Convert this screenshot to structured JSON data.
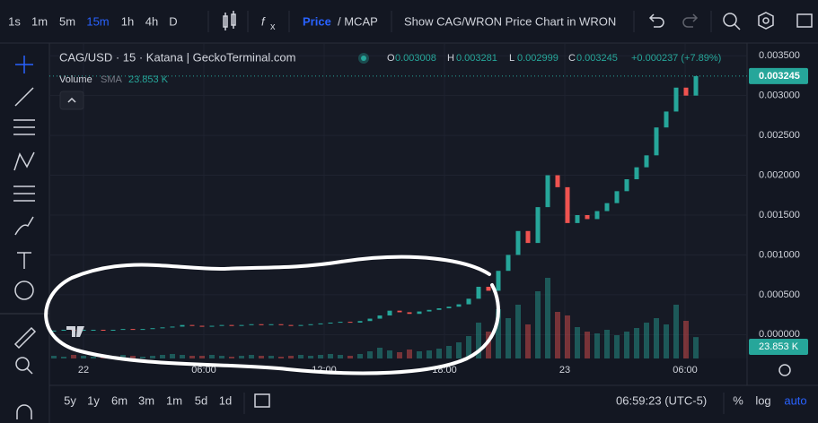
{
  "toolbar": {
    "intervals": [
      "1s",
      "1m",
      "5m",
      "15m",
      "1h",
      "4h",
      "D"
    ],
    "active_interval": "15m",
    "price": "Price",
    "mcap": "/ MCAP",
    "switch": "Show CAG/WRON Price Chart in WRON"
  },
  "legend": {
    "symbol": "CAG/USD · 15 · Katana | GeckoTerminal.com",
    "o_label": "O",
    "o": "0.003008",
    "h_label": "H",
    "h": "0.003281",
    "l_label": "L",
    "l": "0.002999",
    "c_label": "C",
    "c": "0.003245",
    "change": "+0.000237 (+7.89%)",
    "volume": "Volume",
    "sma": "SMA",
    "volume_value": "23.853 K"
  },
  "chart": {
    "type": "candlestick",
    "open": 4e-05,
    "close": [
      5e-05,
      6e-05,
      5e-05,
      6e-05,
      6e-05,
      5e-05,
      6e-05,
      7e-05,
      6e-05,
      7e-05,
      8e-05,
      9e-05,
      0.0001,
      0.00012,
      0.00011,
      0.0001,
      0.00011,
      0.00012,
      0.00011,
      0.00012,
      0.00013,
      0.00012,
      0.00013,
      0.00012,
      0.00011,
      0.00012,
      0.00013,
      0.00014,
      0.00015,
      0.00016,
      0.00015,
      0.00017,
      0.0002,
      0.00024,
      0.0003,
      0.00028,
      0.00026,
      0.00029,
      0.00031,
      0.00033,
      0.00035,
      0.00038,
      0.00045,
      0.0006,
      0.00055,
      0.0008,
      0.001,
      0.0013,
      0.00115,
      0.0016,
      0.002,
      0.00185,
      0.0014,
      0.0015,
      0.00145,
      0.00155,
      0.00165,
      0.0018,
      0.00195,
      0.0021,
      0.00225,
      0.0026,
      0.0028,
      0.0031,
      0.003,
      0.003245
    ],
    "volume": [
      3,
      2,
      4,
      3,
      2,
      3,
      2,
      4,
      3,
      2,
      3,
      4,
      5,
      4,
      3,
      3,
      4,
      3,
      2,
      3,
      4,
      3,
      3,
      2,
      3,
      4,
      3,
      4,
      5,
      4,
      3,
      5,
      8,
      12,
      9,
      7,
      10,
      8,
      9,
      11,
      14,
      18,
      25,
      40,
      30,
      55,
      45,
      60,
      38,
      75,
      90,
      52,
      48,
      35,
      30,
      28,
      32,
      26,
      30,
      34,
      40,
      45,
      38,
      60,
      42,
      23.853
    ],
    "up_color": "#26a69a",
    "down_color": "#ef5350",
    "grid": true,
    "ylim": [
      -0.0003,
      0.00366
    ],
    "yticks": [
      {
        "value": 0,
        "label": "0.000000"
      },
      {
        "value": 0.0005,
        "label": "0.000500"
      },
      {
        "value": 0.001,
        "label": "0.001000"
      },
      {
        "value": 0.0015,
        "label": "0.001500"
      },
      {
        "value": 0.002,
        "label": "0.002000"
      },
      {
        "value": 0.0025,
        "label": "0.002500"
      },
      {
        "value": 0.003,
        "label": "0.003000"
      },
      {
        "value": 0.0035,
        "label": "0.003500"
      }
    ],
    "last_price": "0.003245",
    "last_volume": "23.853 K",
    "xticks": [
      "22",
      "06:00",
      "12:00",
      "18:00",
      "23",
      "06:00"
    ]
  },
  "ranges": [
    "5y",
    "1y",
    "6m",
    "3m",
    "1m",
    "5d",
    "1d"
  ],
  "clock": "06:59:23 (UTC-5)",
  "scale_options": [
    "%",
    "log",
    "auto"
  ]
}
